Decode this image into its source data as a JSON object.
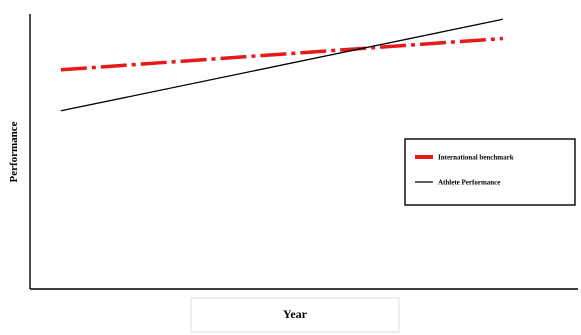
{
  "chart_data": {
    "type": "line",
    "title": "",
    "xlabel": "Year",
    "ylabel": "Performance",
    "x": [
      0,
      1
    ],
    "series": [
      {
        "name": "International benchmark",
        "values": [
          0.91,
          1.04
        ],
        "color": "#e8191a",
        "style": "dashed"
      },
      {
        "name": "Athlete Performance",
        "values": [
          0.74,
          1.12
        ],
        "color": "#000000",
        "style": "solid"
      }
    ],
    "xlim": [
      -0.07,
      1.17
    ],
    "ylim": [
      0,
      1.2
    ],
    "grid": false,
    "legend": "right"
  }
}
